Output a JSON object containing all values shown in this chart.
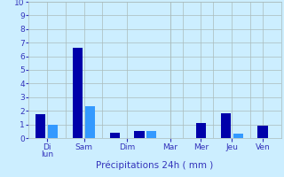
{
  "xlabel": "Précipitations 24h ( mm )",
  "background_color": "#cceeff",
  "bar_color_dark": "#0000aa",
  "bar_color_light": "#3399ff",
  "grid_color": "#aabbbb",
  "ylim": [
    0,
    10
  ],
  "yticks": [
    0,
    1,
    2,
    3,
    4,
    5,
    6,
    7,
    8,
    9,
    10
  ],
  "bars": [
    {
      "x": 1,
      "height": 1.75
    },
    {
      "x": 2,
      "height": 1.0
    },
    {
      "x": 4,
      "height": 6.6
    },
    {
      "x": 5,
      "height": 2.35
    },
    {
      "x": 7,
      "height": 0.4
    },
    {
      "x": 9,
      "height": 0.5
    },
    {
      "x": 10,
      "height": 0.5
    },
    {
      "x": 14,
      "height": 1.1
    },
    {
      "x": 16,
      "height": 1.8
    },
    {
      "x": 17,
      "height": 0.3
    },
    {
      "x": 19,
      "height": 0.9
    }
  ],
  "day_ticks": [
    {
      "x": 1.5,
      "label": "Di\u0000lun"
    },
    {
      "x": 4.5,
      "label": "Sam"
    },
    {
      "x": 8.0,
      "label": "Dim"
    },
    {
      "x": 11.5,
      "label": "Mar"
    },
    {
      "x": 14.0,
      "label": "Mer"
    },
    {
      "x": 16.5,
      "label": "Jeu"
    },
    {
      "x": 19.0,
      "label": "Ven"
    }
  ],
  "day_lines": [
    3,
    6,
    11.5,
    12.5,
    15,
    18
  ],
  "xlim": [
    0,
    20.5
  ],
  "label_color": "#3333bb",
  "tick_color": "#3333bb",
  "font_size_tick": 6.5,
  "font_size_xlabel": 7.5
}
